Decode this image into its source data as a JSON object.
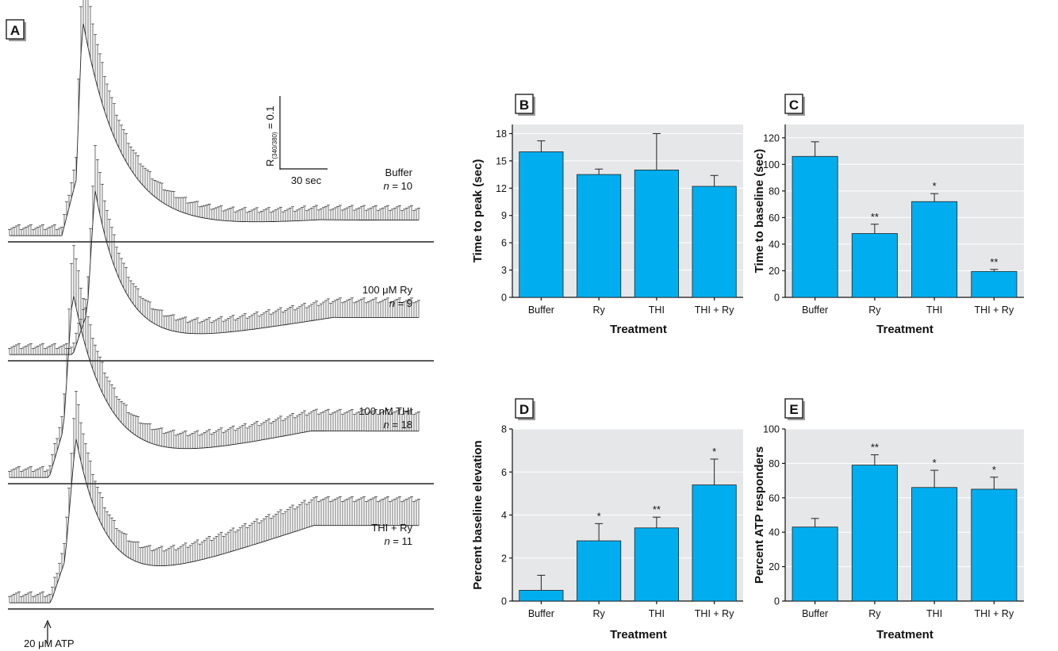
{
  "figure": {
    "scale_bar": {
      "y_label": "R",
      "y_sub": "(340/380)",
      "y_value": " = 0.1",
      "x_label": "30 sec"
    },
    "stimulus_label": "20 μM ATP"
  },
  "chart_data": [
    {
      "panel": "A",
      "type": "line",
      "traces": [
        {
          "label": "Buffer",
          "n_label": "n",
          "n_value": " = 10",
          "baseline": 0.0,
          "peak": 0.72,
          "plateau": 0.05
        },
        {
          "label": "100 μM Ry",
          "n_label": "n",
          "n_value": " = 9",
          "baseline": 0.0,
          "peak": 0.55,
          "plateau": 0.12
        },
        {
          "label": "100 nM THI",
          "n_label": "n",
          "n_value": " = 18",
          "baseline": 0.0,
          "peak": 0.62,
          "plateau": 0.15
        },
        {
          "label": "THI + Ry",
          "n_label": "n",
          "n_value": " = 11",
          "baseline": 0.0,
          "peak": 0.55,
          "plateau": 0.25
        }
      ]
    },
    {
      "panel": "B",
      "type": "bar",
      "categories": [
        "Buffer",
        "Ry",
        "THI",
        "THI + Ry"
      ],
      "values": [
        16,
        13.5,
        14,
        12.2
      ],
      "errors": [
        1.2,
        0.6,
        4,
        1.2
      ],
      "significance": [
        "",
        "",
        "",
        ""
      ],
      "xlabel": "Treatment",
      "ylabel": "Time to peak (sec)",
      "ylim": [
        0,
        19
      ],
      "yticks": [
        "0",
        "3",
        "6",
        "9",
        "12",
        "15",
        "18"
      ],
      "ytick_values": [
        0,
        3,
        6,
        9,
        12,
        15,
        18
      ]
    },
    {
      "panel": "C",
      "type": "bar",
      "categories": [
        "Buffer",
        "Ry",
        "THI",
        "THI + Ry"
      ],
      "values": [
        106,
        48,
        72,
        19.5
      ],
      "errors": [
        11,
        7,
        6,
        1.5
      ],
      "significance": [
        "",
        "**",
        "*",
        "**"
      ],
      "xlabel": "Treatment",
      "ylabel": "Time to baseline (sec)",
      "ylim": [
        0,
        130
      ],
      "yticks": [
        "0",
        "20",
        "40",
        "60",
        "80",
        "100",
        "120"
      ],
      "ytick_values": [
        0,
        20,
        40,
        60,
        80,
        100,
        120
      ]
    },
    {
      "panel": "D",
      "type": "bar",
      "categories": [
        "Buffer",
        "Ry",
        "THI",
        "THI + Ry"
      ],
      "values": [
        0.5,
        2.8,
        3.4,
        5.4
      ],
      "errors": [
        0.7,
        0.8,
        0.5,
        1.2
      ],
      "significance": [
        "",
        "*",
        "**",
        "*"
      ],
      "xlabel": "Treatment",
      "ylabel": "Percent baseline elevation",
      "ylim": [
        0,
        8
      ],
      "yticks": [
        "0",
        "2",
        "4",
        "6",
        "8"
      ],
      "ytick_values": [
        0,
        2,
        4,
        6,
        8
      ]
    },
    {
      "panel": "E",
      "type": "bar",
      "categories": [
        "Buffer",
        "Ry",
        "THI",
        "THI + Ry"
      ],
      "values": [
        43,
        79,
        66,
        65
      ],
      "errors": [
        5,
        6,
        10,
        7
      ],
      "significance": [
        "",
        "**",
        "*",
        "*"
      ],
      "xlabel": "Treatment",
      "ylabel": "Percent ATP responders",
      "ylim": [
        0,
        100
      ],
      "yticks": [
        "0",
        "20",
        "40",
        "60",
        "80",
        "100"
      ],
      "ytick_values": [
        0,
        20,
        40,
        60,
        80,
        100
      ]
    }
  ]
}
